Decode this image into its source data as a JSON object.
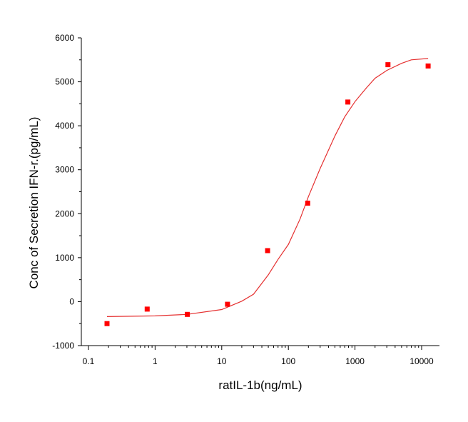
{
  "chart_data": {
    "type": "scatter",
    "title": "",
    "xlabel": "ratIL-1b(ng/mL)",
    "ylabel": "Conc of Secretion IFN-r.(pg/mL)",
    "x_scale": "log",
    "xlim": [
      0.1,
      20000
    ],
    "ylim": [
      -1000,
      6000
    ],
    "x_ticks": [
      0.1,
      1,
      10,
      100,
      1000,
      10000
    ],
    "x_tick_labels": [
      "0.1",
      "1",
      "10",
      "100",
      "1000",
      "10000"
    ],
    "y_ticks": [
      -1000,
      0,
      1000,
      2000,
      3000,
      4000,
      5000,
      6000
    ],
    "y_tick_labels": [
      "-1000",
      "0",
      "1000",
      "2000",
      "3000",
      "4000",
      "5000",
      "6000"
    ],
    "grid": false,
    "legend": "none",
    "series": [
      {
        "kind": "points",
        "color": "#ff0000",
        "x": [
          0.19,
          0.76,
          3.05,
          12.2,
          48.8,
          195,
          781,
          3125,
          12500
        ],
        "y": [
          -500,
          -170,
          -290,
          -60,
          1160,
          2240,
          4540,
          5390,
          5360
        ]
      },
      {
        "kind": "fit-curve",
        "color": "#e53030",
        "x": [
          0.19,
          1,
          3,
          10,
          20,
          30,
          50,
          70,
          100,
          150,
          200,
          300,
          500,
          700,
          1000,
          1500,
          2000,
          3000,
          5000,
          7000,
          12500
        ],
        "y": [
          -340,
          -325,
          -290,
          -180,
          10,
          170,
          610,
          960,
          1300,
          1880,
          2390,
          3030,
          3770,
          4200,
          4550,
          4870,
          5080,
          5260,
          5420,
          5500,
          5530
        ]
      }
    ]
  }
}
